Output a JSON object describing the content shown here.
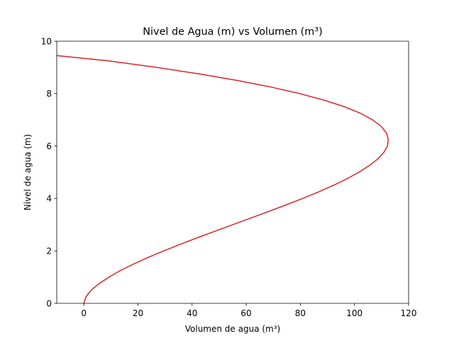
{
  "chart_data": {
    "type": "line",
    "title": "Nivel de Agua (m) vs Volumen (m³)",
    "xlabel": "Volumen de agua (m³)",
    "ylabel": "Nivel de agua (m)",
    "xlim": [
      -10,
      120
    ],
    "ylim": [
      0,
      10
    ],
    "x_ticks": [
      "0",
      "20",
      "40",
      "60",
      "80",
      "100",
      "120"
    ],
    "y_ticks": [
      "0",
      "2",
      "4",
      "6",
      "8",
      "10"
    ],
    "grid": false,
    "legend": "none",
    "series_color": "#d62728",
    "series": [
      {
        "x": [
          0,
          0.8,
          2.7,
          5.6,
          9.3,
          13.5,
          18.4,
          23.7,
          29.5,
          35.6,
          41.9,
          48.4,
          55,
          61.6,
          68.2,
          74.6,
          80.8,
          86.7,
          92.2,
          97.2,
          101.6,
          105.4,
          108.5,
          110.8,
          112.2,
          112.5,
          111.8,
          109.9,
          106.7,
          102.2,
          96.3,
          88.8,
          79.8,
          69.2,
          56.9,
          42.8,
          26.9,
          9.1,
          -10
        ],
        "y": [
          0,
          0.25,
          0.5,
          0.75,
          1,
          1.25,
          1.5,
          1.75,
          2,
          2.25,
          2.5,
          2.75,
          3,
          3.25,
          3.5,
          3.75,
          4,
          4.25,
          4.5,
          4.75,
          5,
          5.25,
          5.5,
          5.75,
          6,
          6.25,
          6.5,
          6.75,
          7,
          7.25,
          7.5,
          7.75,
          8,
          8.25,
          8.5,
          8.75,
          9,
          9.25,
          9.45
        ]
      }
    ]
  }
}
